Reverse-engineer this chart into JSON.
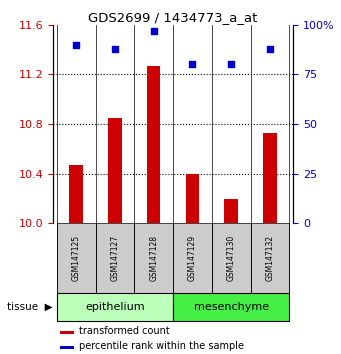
{
  "title": "GDS2699 / 1434773_a_at",
  "samples": [
    "GSM147125",
    "GSM147127",
    "GSM147128",
    "GSM147129",
    "GSM147130",
    "GSM147132"
  ],
  "bar_values": [
    10.47,
    10.85,
    11.27,
    10.4,
    10.2,
    10.73
  ],
  "percentile_values": [
    90,
    88,
    97,
    80,
    80,
    88
  ],
  "bar_color": "#cc0000",
  "dot_color": "#0000cc",
  "ylim_left": [
    10,
    11.6
  ],
  "ylim_right": [
    0,
    100
  ],
  "yticks_left": [
    10.0,
    10.4,
    10.8,
    11.2,
    11.6
  ],
  "yticks_right": [
    0,
    25,
    50,
    75,
    100
  ],
  "tissue_groups": [
    {
      "label": "epithelium",
      "n_samples": 3,
      "color": "#bbffbb"
    },
    {
      "label": "mesenchyme",
      "n_samples": 3,
      "color": "#44ee44"
    }
  ],
  "tissue_label": "tissue",
  "legend_bar_label": "transformed count",
  "legend_dot_label": "percentile rank within the sample",
  "background_color": "#ffffff",
  "label_color_left": "#cc0000",
  "label_color_right": "#0000cc",
  "bar_width": 0.35,
  "sample_bg_color": "#cccccc"
}
